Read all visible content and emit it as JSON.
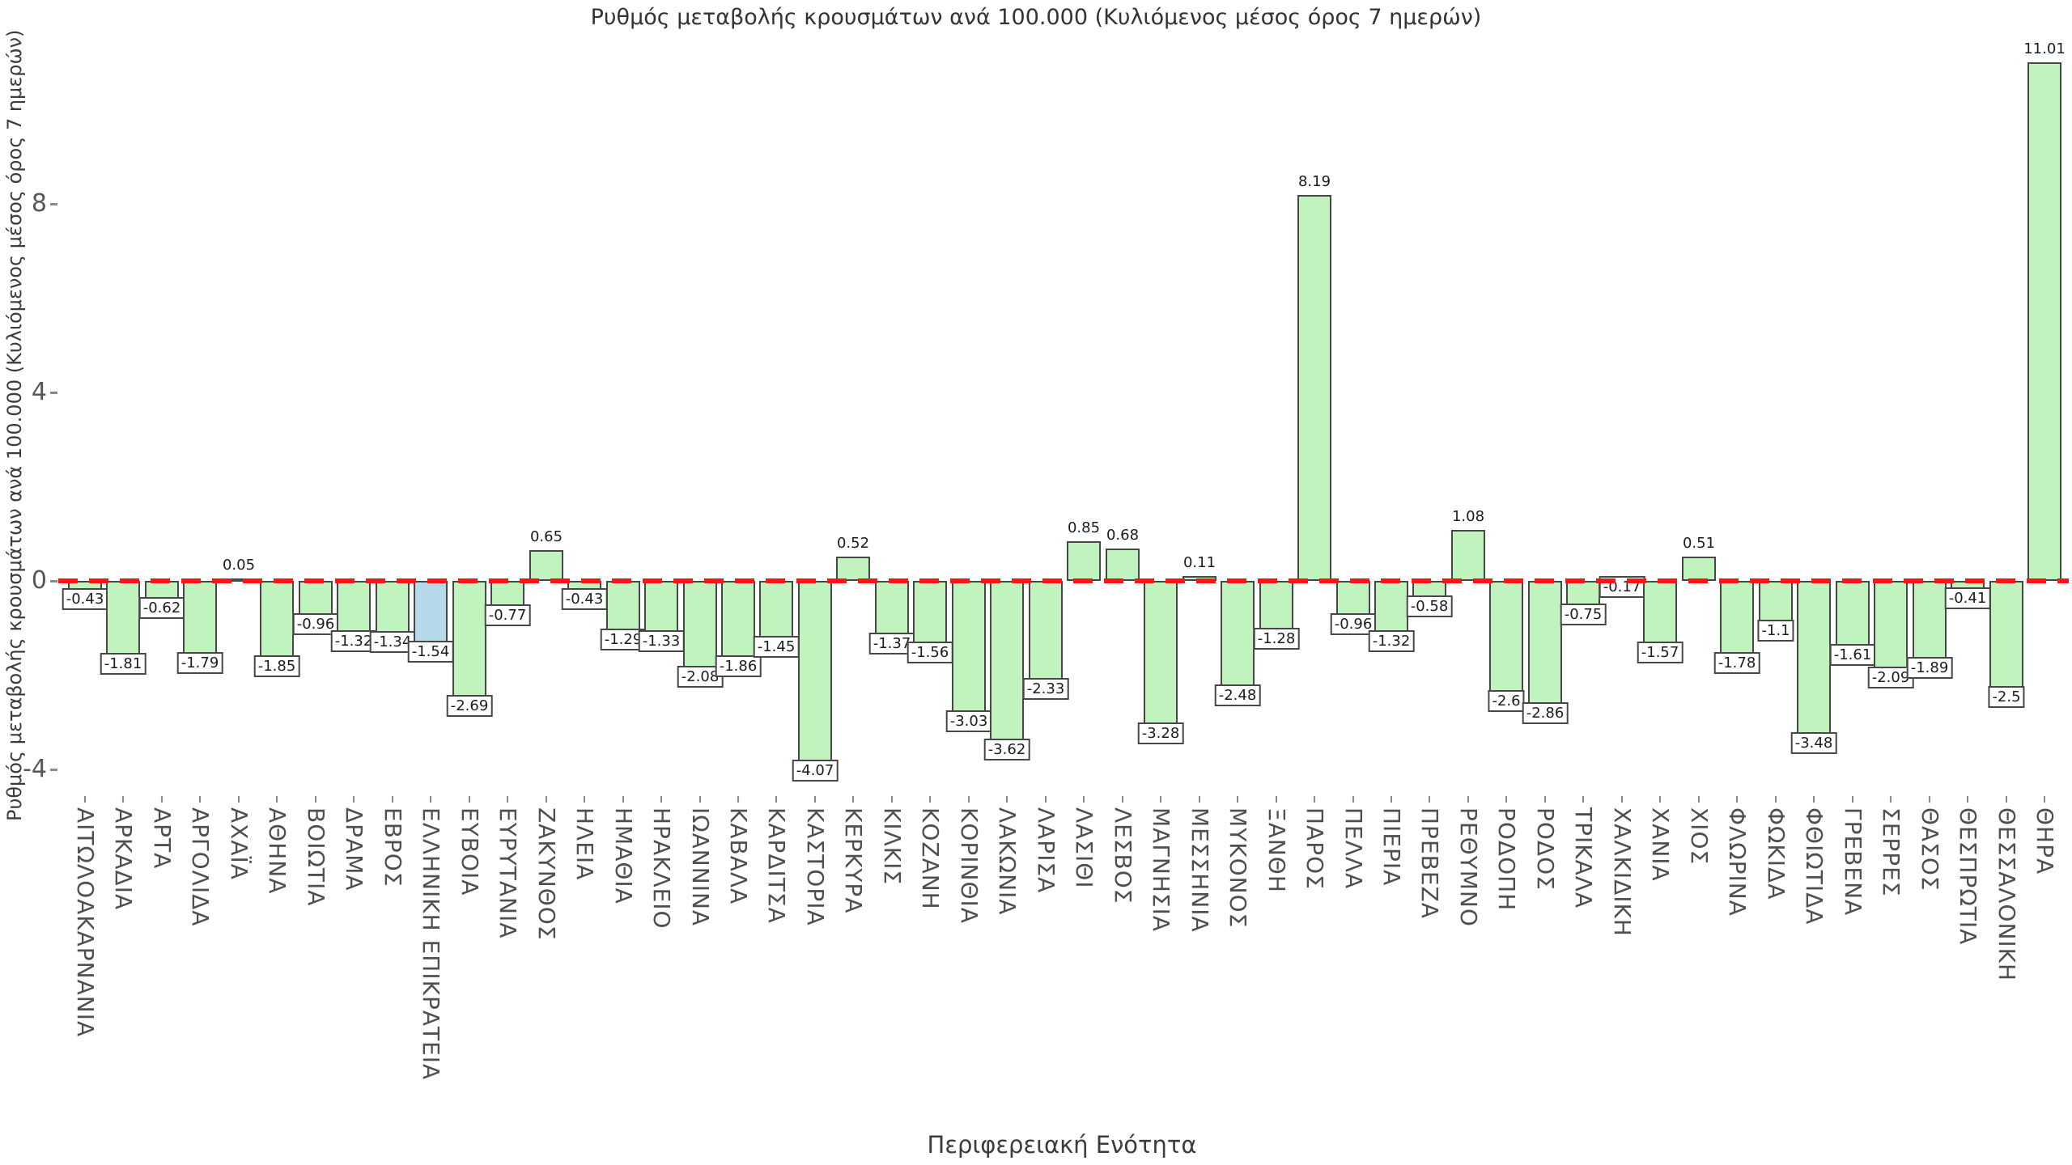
{
  "title": "Ρυθμός μεταβολής κρουσμάτων ανά 100.000 (Κυλιόμενος μέσος όρος 7 ημερών)",
  "chart_data": {
    "type": "bar",
    "title": "Ρυθμός μεταβολής κρουσμάτων ανά 100.000 (Κυλιόμενος μέσος όρος 7 ημερών)",
    "xlabel": "Περιφερειακή Ενότητα",
    "ylabel": "Ρυθμός μεταβολής κρουσμάτων ανά 100.000 (Κυλιόμενος μέσος όρος 7 ημερών)",
    "yticks": [
      8,
      4,
      0,
      -4
    ],
    "ylim": [
      -4.5,
      11.5
    ],
    "grid": false,
    "legend": "none",
    "zero_line_style": "dashed",
    "colors": {
      "bar_fill": "#c1f3bf",
      "bar_border": "#474747",
      "highlight_fill": "#b5d9e9",
      "zero_line": "#ff1414",
      "tick_text": "#575757",
      "label_text": "#1c1c1c"
    },
    "highlight_category": "ΕΛΛΗΝΙΚΗ ΕΠΙΚΡΑΤΕΙΑ",
    "categories": [
      "ΑΙΤΩΛΟΑΚΑΡΝΑΝΙΑ",
      "ΑΡΚΑΔΙΑ",
      "ΑΡΤΑ",
      "ΑΡΓΟΛΙΔΑ",
      "ΑΧΑΪΑ",
      "ΑΘΗΝΑ",
      "ΒΟΙΩΤΙΑ",
      "ΔΡΑΜΑ",
      "ΕΒΡΟΣ",
      "ΕΛΛΗΝΙΚΗ ΕΠΙΚΡΑΤΕΙΑ",
      "ΕΥΒΟΙΑ",
      "ΕΥΡΥΤΑΝΙΑ",
      "ΖΑΚΥΝΘΟΣ",
      "ΗΛΕΙΑ",
      "ΗΜΑΘΙΑ",
      "ΗΡΑΚΛΕΙΟ",
      "ΙΩΑΝΝΙΝΑ",
      "ΚΑΒΑΛΑ",
      "ΚΑΡΔΙΤΣΑ",
      "ΚΑΣΤΟΡΙΑ",
      "ΚΕΡΚΥΡΑ",
      "ΚΙΛΚΙΣ",
      "ΚΟΖΑΝΗ",
      "ΚΟΡΙΝΘΙΑ",
      "ΛΑΚΩΝΙΑ",
      "ΛΑΡΙΣΑ",
      "ΛΑΣΙΘΙ",
      "ΛΕΣΒΟΣ",
      "ΜΑΓΝΗΣΙΑ",
      "ΜΕΣΣΗΝΙΑ",
      "ΜΥΚΟΝΟΣ",
      "ΞΑΝΘΗ",
      "ΠΑΡΟΣ",
      "ΠΕΛΛΑ",
      "ΠΙΕΡΙΑ",
      "ΠΡΕΒΕΖΑ",
      "ΡΕΘΥΜΝΟ",
      "ΡΟΔΟΠΗ",
      "ΡΟΔΟΣ",
      "ΤΡΙΚΑΛΑ",
      "ΧΑΛΚΙΔΙΚΗ",
      "ΧΑΝΙΑ",
      "ΧΙΟΣ",
      "ΦΛΩΡΙΝΑ",
      "ΦΩΚΙΔΑ",
      "ΦΘΙΩΤΙΔΑ",
      "ΓΡΕΒΕΝΑ",
      "ΣΕΡΡΕΣ",
      "ΘΑΣΟΣ",
      "ΘΕΣΠΡΩΤΙΑ",
      "ΘΕΣΣΑΛΟΝΙΚΗ",
      "ΘΗΡΑ"
    ],
    "values": [
      -0.43,
      -1.81,
      -0.62,
      -1.79,
      0.05,
      -1.85,
      -0.96,
      -1.32,
      -1.34,
      -1.54,
      -2.69,
      -0.77,
      0.65,
      -0.43,
      -1.29,
      -1.33,
      -2.08,
      -1.86,
      -1.45,
      -4.07,
      0.52,
      -1.37,
      -1.56,
      -3.03,
      -3.62,
      -2.33,
      0.85,
      0.68,
      -3.28,
      0.11,
      -2.48,
      -1.28,
      8.19,
      -0.96,
      -1.32,
      -0.58,
      1.08,
      -2.6,
      -2.86,
      -0.75,
      -0.17,
      -1.57,
      0.51,
      -1.78,
      -1.1,
      -3.48,
      -1.61,
      -2.09,
      -1.89,
      -0.41,
      -2.5,
      11.01
    ]
  }
}
